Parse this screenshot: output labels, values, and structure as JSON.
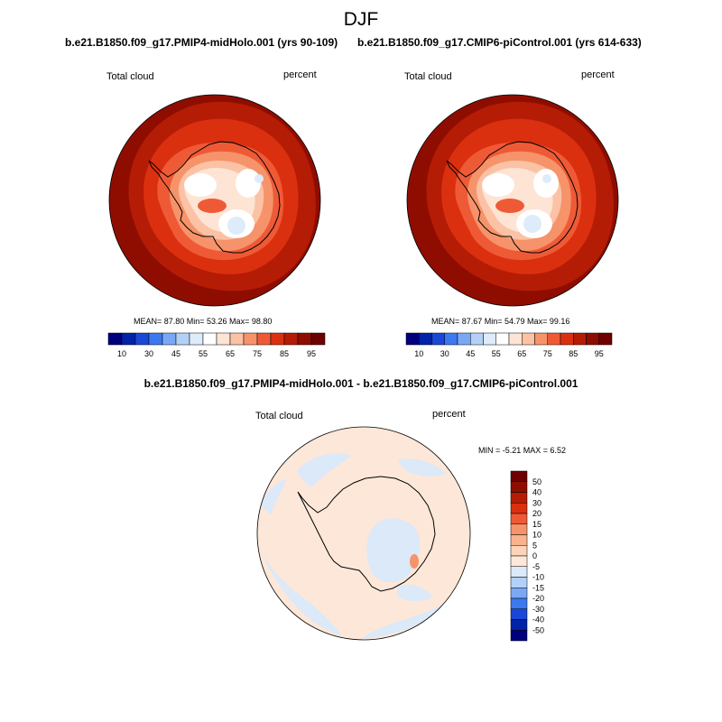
{
  "figure": {
    "season": "DJF",
    "panels": [
      {
        "title": "b.e21.B1850.f09_g17.PMIP4-midHolo.001 (yrs 90-109)",
        "variable": "Total cloud",
        "units": "percent",
        "stats": "MEAN=  87.80  Min=  53.26   Max=  98.80"
      },
      {
        "title": "b.e21.B1850.f09_g17.CMIP6-piControl.001 (yrs 614-633)",
        "variable": "Total cloud",
        "units": "percent",
        "stats": "MEAN=  87.67  Min=  54.79   Max=  99.16"
      }
    ],
    "difference": {
      "title": "b.e21.B1850.f09_g17.PMIP4-midHolo.001 - b.e21.B1850.f09_g17.CMIP6-piControl.001",
      "variable": "Total cloud",
      "units": "percent",
      "stats": "MIN =  -5.21 MAX =   6.52"
    },
    "colorbar_top": {
      "labels": [
        "10",
        "30",
        "45",
        "55",
        "65",
        "75",
        "85",
        "95"
      ],
      "colors": [
        "#00007f",
        "#0023a8",
        "#1a47d6",
        "#3c78f0",
        "#7aa8f5",
        "#b3d0f7",
        "#deebfa",
        "#ffffff",
        "#fde4d4",
        "#fbc2a5",
        "#f6936a",
        "#ef5a36",
        "#db300f",
        "#b51c05",
        "#8f0d00",
        "#6e0000"
      ]
    },
    "colorbar_diff": {
      "labels": [
        "50",
        "40",
        "30",
        "20",
        "15",
        "10",
        "5",
        "0",
        "-5",
        "-10",
        "-15",
        "-20",
        "-30",
        "-40",
        "-50"
      ],
      "colors": [
        "#8f0d00",
        "#b51c05",
        "#db300f",
        "#ef5a36",
        "#f6936a",
        "#fbb38c",
        "#fdd3b9",
        "#fde7d8",
        "#dbe9f9",
        "#b3d0f7",
        "#7aa8f5",
        "#3c78f0",
        "#1a47d6",
        "#0023a8",
        "#00007f"
      ]
    },
    "map_colors": {
      "ocean_dark": "#8f0d00",
      "ring_mid": "#b51c05",
      "ring_light": "#db300f",
      "coast_band": "#ef5a36",
      "land_1": "#f6936a",
      "land_2": "#fbc2a5",
      "land_3": "#fde4d4",
      "land_4": "#ffffff",
      "land_5": "#deebfa",
      "diff_pos": "#fde7d8",
      "diff_neg": "#dbe9f9",
      "diff_peak": "#f6936a"
    }
  }
}
